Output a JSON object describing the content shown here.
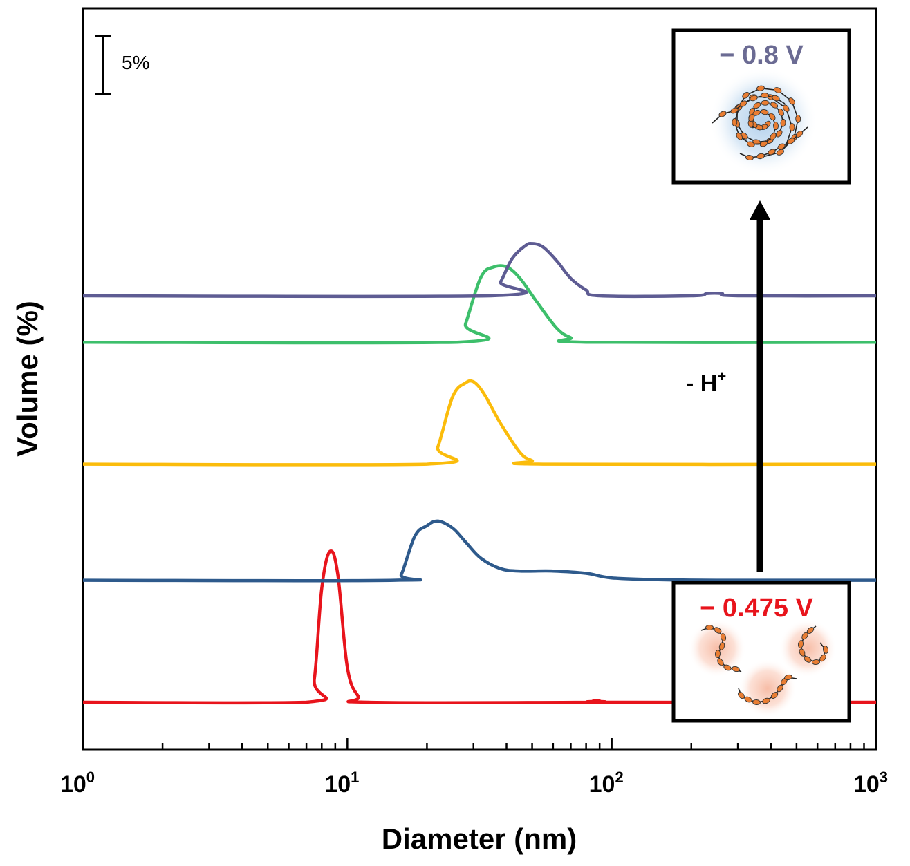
{
  "chart_data": {
    "type": "line",
    "xlabel": "Diameter (nm)",
    "ylabel": "Volume (%)",
    "xscale": "log",
    "xlim": [
      1,
      1000
    ],
    "xticks": [
      {
        "value": 1,
        "base": "10",
        "exp": "0"
      },
      {
        "value": 10,
        "base": "10",
        "exp": "1"
      },
      {
        "value": 100,
        "base": "10",
        "exp": "2"
      },
      {
        "value": 1000,
        "base": "10",
        "exp": "3"
      }
    ],
    "y_scale_bar": {
      "label": "5%",
      "value": 5
    },
    "stacked_offsets_percent": [
      0,
      10.5,
      20.5,
      31,
      35
    ],
    "series": [
      {
        "color": "#e8141c",
        "offset": 0,
        "points": [
          [
            1,
            0
          ],
          [
            7,
            0
          ],
          [
            7.5,
            2
          ],
          [
            8,
            9.8
          ],
          [
            8.6,
            13
          ],
          [
            9.2,
            11
          ],
          [
            10,
            3
          ],
          [
            11,
            0.5
          ],
          [
            12,
            0
          ],
          [
            80,
            0
          ],
          [
            85,
            0.1
          ],
          [
            90,
            0.1
          ],
          [
            100,
            0
          ],
          [
            1000,
            0
          ]
        ]
      },
      {
        "color": "#2e5a8c",
        "offset": 10.5,
        "points": [
          [
            1,
            0
          ],
          [
            15,
            0
          ],
          [
            16,
            0.5
          ],
          [
            18,
            3.8
          ],
          [
            20,
            4.7
          ],
          [
            22,
            5.1
          ],
          [
            25,
            4.5
          ],
          [
            28,
            3.3
          ],
          [
            32,
            1.9
          ],
          [
            38,
            1
          ],
          [
            45,
            0.8
          ],
          [
            60,
            0.8
          ],
          [
            80,
            0.6
          ],
          [
            100,
            0.2
          ],
          [
            150,
            0.05
          ],
          [
            250,
            0
          ],
          [
            1000,
            0
          ]
        ]
      },
      {
        "color": "#fbbc0b",
        "offset": 20.5,
        "points": [
          [
            1,
            0
          ],
          [
            20,
            0
          ],
          [
            22,
            1.5
          ],
          [
            25,
            5.8
          ],
          [
            28,
            7
          ],
          [
            30,
            7.1
          ],
          [
            33,
            6
          ],
          [
            38,
            3.5
          ],
          [
            45,
            1
          ],
          [
            50,
            0.3
          ],
          [
            55,
            0
          ],
          [
            1000,
            0
          ]
        ]
      },
      {
        "color": "#3dbf6b",
        "offset": 31,
        "points": [
          [
            1,
            0
          ],
          [
            26,
            0
          ],
          [
            28,
            1.6
          ],
          [
            32,
            5.6
          ],
          [
            36,
            6.5
          ],
          [
            40,
            6.5
          ],
          [
            45,
            5.5
          ],
          [
            52,
            3.5
          ],
          [
            62,
            1.2
          ],
          [
            70,
            0.4
          ],
          [
            80,
            0
          ],
          [
            1000,
            0
          ]
        ]
      },
      {
        "color": "#5e5c93",
        "offset": 35,
        "points": [
          [
            1,
            0
          ],
          [
            35,
            0
          ],
          [
            38,
            1.2
          ],
          [
            42,
            3.2
          ],
          [
            47,
            4.3
          ],
          [
            50,
            4.5
          ],
          [
            55,
            4.2
          ],
          [
            62,
            3
          ],
          [
            70,
            1.5
          ],
          [
            80,
            0.5
          ],
          [
            90,
            0
          ],
          [
            200,
            0
          ],
          [
            230,
            0.2
          ],
          [
            260,
            0.2
          ],
          [
            300,
            0
          ],
          [
            1000,
            0
          ]
        ]
      }
    ],
    "annotations": [
      {
        "text": "- H",
        "sup": "+"
      }
    ],
    "insets": [
      {
        "label": "− 0.8 V",
        "color": "#6b6b93",
        "position": "top-right"
      },
      {
        "label": "− 0.475 V",
        "color": "#e8141c",
        "position": "bottom-right"
      }
    ]
  }
}
